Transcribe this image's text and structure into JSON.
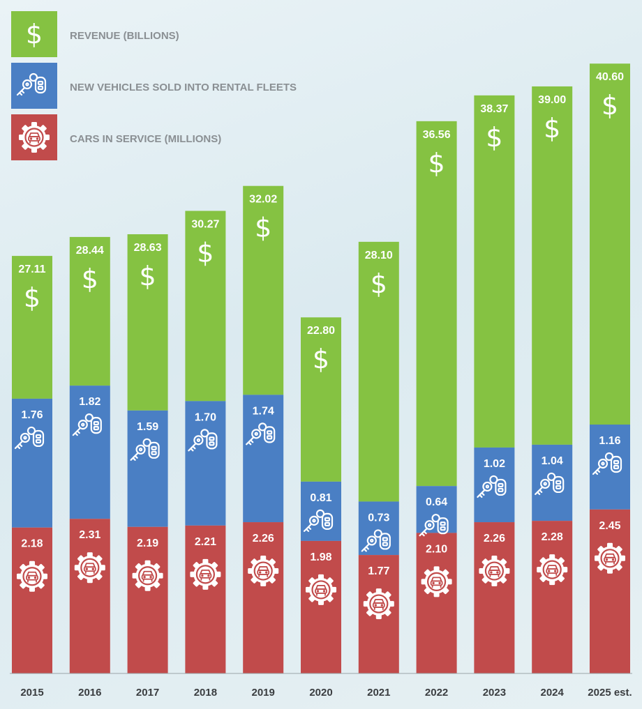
{
  "chart_data": {
    "type": "bar",
    "stacked": true,
    "categories": [
      "2015",
      "2016",
      "2017",
      "2018",
      "2019",
      "2020",
      "2021",
      "2022",
      "2023",
      "2024",
      "2025 est."
    ],
    "series": [
      {
        "name": "CARS IN SERVICE (MILLIONS)",
        "color": "#c14b4b",
        "icon": "car-gear-icon",
        "values": [
          2.18,
          2.31,
          2.19,
          2.21,
          2.26,
          1.98,
          1.77,
          2.1,
          2.26,
          2.28,
          2.45
        ],
        "labels": [
          "2.18",
          "2.31",
          "2.19",
          "2.21",
          "2.26",
          "1.98",
          "1.77",
          "2.10",
          "2.26",
          "2.28",
          "2.45"
        ]
      },
      {
        "name": "NEW VEHICLES SOLD INTO RENTAL FLEETS",
        "color": "#4a7fc4",
        "icon": "car-keys-icon",
        "values": [
          1.76,
          1.82,
          1.59,
          1.7,
          1.74,
          0.81,
          0.73,
          0.64,
          1.02,
          1.04,
          1.16
        ],
        "labels": [
          "1.76",
          "1.82",
          "1.59",
          "1.70",
          "1.74",
          "0.81",
          "0.73",
          "0.64",
          "1.02",
          "1.04",
          "1.16"
        ]
      },
      {
        "name": "REVENUE (BILLIONS)",
        "color": "#85c242",
        "icon": "dollar-icon",
        "values": [
          27.11,
          28.44,
          28.63,
          30.27,
          32.02,
          22.8,
          28.1,
          36.56,
          38.37,
          39.0,
          40.6
        ],
        "labels": [
          "27.11",
          "28.44",
          "28.63",
          "30.27",
          "32.02",
          "22.80",
          "28.10",
          "36.56",
          "38.37",
          "39.00",
          "40.60"
        ]
      }
    ],
    "legend": "top-left",
    "legend_order": [
      "REVENUE (BILLIONS)",
      "NEW VEHICLES SOLD INTO RENTAL FLEETS",
      "CARS IN SERVICE (MILLIONS)"
    ],
    "title": "",
    "xlabel": "",
    "ylabel": "",
    "grid": false
  }
}
